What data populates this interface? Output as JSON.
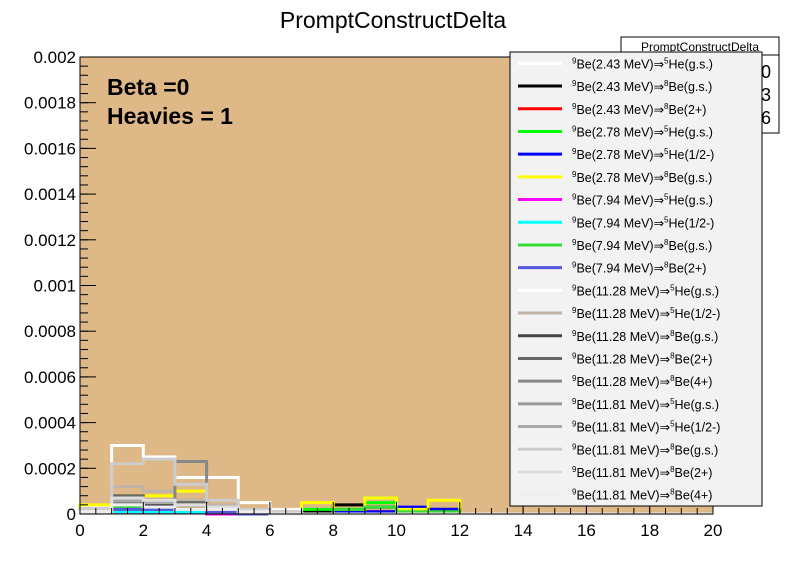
{
  "chart_data": {
    "type": "line",
    "title": "PromptConstructDelta",
    "xlabel": "",
    "ylabel": "",
    "xlim": [
      0,
      20
    ],
    "ylim": [
      0,
      0.002
    ],
    "bin_width": 1,
    "frame_fill": "#deb887",
    "x_ticks": [
      "0",
      "2",
      "4",
      "6",
      "8",
      "10",
      "12",
      "14",
      "16",
      "18",
      "20"
    ],
    "y_ticks": [
      "0",
      "0.0002",
      "0.0004",
      "0.0006",
      "0.0008",
      "0.001",
      "0.0012",
      "0.0014",
      "0.0016",
      "0.0018",
      "0.002"
    ],
    "annotations": [
      "Beta =0",
      "Heavies = 1"
    ],
    "stats_box": {
      "title": "PromptConstructDelta",
      "values": [
        "0",
        "3",
        "6"
      ]
    },
    "series": [
      {
        "name": "Be(2.43 MeV)⇒ He(g.s.)",
        "pre": "9",
        "post": "5",
        "color": "#ffffff",
        "values": [
          3e-05,
          3e-05,
          3e-05,
          2e-05,
          1e-05,
          1e-05,
          1e-05,
          0,
          0,
          0,
          0,
          0,
          0,
          0,
          0,
          0,
          0,
          0,
          0,
          0
        ]
      },
      {
        "name": "Be(2.43 MeV)⇒ Be(g.s.)",
        "pre": "9",
        "post": "8",
        "color": "#000000",
        "values": [
          2e-05,
          4e-05,
          3e-05,
          2e-05,
          1e-05,
          1e-05,
          5e-06,
          1e-05,
          4e-05,
          3e-05,
          2e-05,
          2e-05,
          0,
          0,
          0,
          0,
          0,
          0,
          0,
          0
        ]
      },
      {
        "name": "Be(2.43 MeV)⇒ Be(2+)",
        "pre": "9",
        "post": "8",
        "color": "#ff0000",
        "values": [
          1e-05,
          1e-05,
          1e-05,
          1e-05,
          0,
          0,
          0,
          0,
          1e-05,
          1e-05,
          0,
          0,
          0,
          0,
          0,
          0,
          0,
          0,
          0,
          0
        ]
      },
      {
        "name": "Be(2.78 MeV)⇒ He(g.s.)",
        "pre": "9",
        "post": "5",
        "color": "#00ff00",
        "values": [
          1e-05,
          2e-05,
          2e-05,
          1e-05,
          1e-05,
          0,
          0,
          2e-05,
          2e-05,
          5e-05,
          2e-05,
          1e-05,
          0,
          0,
          0,
          0,
          0,
          0,
          0,
          0
        ]
      },
      {
        "name": "Be(2.78 MeV)⇒ He(1/2-)",
        "pre": "9",
        "post": "5",
        "color": "#0000ff",
        "values": [
          2e-05,
          5e-05,
          4e-05,
          4e-05,
          2e-05,
          1e-05,
          0,
          0,
          1e-05,
          1e-05,
          3e-05,
          2e-05,
          0,
          0,
          0,
          0,
          0,
          0,
          0,
          0
        ]
      },
      {
        "name": "Be(2.78 MeV)⇒ Be(g.s.)",
        "pre": "9",
        "post": "8",
        "color": "#ffff00",
        "values": [
          4e-05,
          8e-05,
          8e-05,
          0.0001,
          2e-05,
          1e-05,
          0,
          5e-05,
          2e-05,
          7e-05,
          2e-05,
          6e-05,
          0,
          0,
          0,
          0,
          0,
          0,
          0,
          0
        ]
      },
      {
        "name": "Be(7.94 MeV)⇒ He(g.s.)",
        "pre": "9",
        "post": "5",
        "color": "#ff00ff",
        "values": [
          1e-05,
          1e-05,
          1e-05,
          1e-05,
          0,
          0,
          0,
          0,
          0,
          0,
          0,
          0,
          0,
          0,
          0,
          0,
          0,
          0,
          0,
          0
        ]
      },
      {
        "name": "Be(7.94 MeV)⇒ He(1/2-)",
        "pre": "9",
        "post": "5",
        "color": "#00ffff",
        "values": [
          1e-05,
          1e-05,
          1e-05,
          1e-05,
          1e-05,
          0,
          0,
          0,
          0,
          0,
          0,
          0,
          0,
          0,
          0,
          0,
          0,
          0,
          0,
          0
        ]
      },
      {
        "name": "Be(7.94 MeV)⇒ Be(g.s.)",
        "pre": "9",
        "post": "8",
        "color": "#33dd33",
        "values": [
          1e-05,
          3e-05,
          2e-05,
          2e-05,
          1e-05,
          0,
          0,
          0,
          2e-05,
          3e-05,
          1e-05,
          1e-05,
          0,
          0,
          0,
          0,
          0,
          0,
          0,
          0
        ]
      },
      {
        "name": "Be(7.94 MeV)⇒ Be(2+)",
        "pre": "9",
        "post": "8",
        "color": "#5555dd",
        "values": [
          1e-05,
          2e-05,
          2e-05,
          2e-05,
          1e-05,
          0,
          0,
          0,
          0,
          0,
          0,
          0,
          0,
          0,
          0,
          0,
          0,
          0,
          0,
          0
        ]
      },
      {
        "name": "Be(11.28 MeV)⇒ He(g.s.)",
        "pre": "9",
        "post": "5",
        "color": "#ffffff",
        "values": [
          1e-05,
          0.0003,
          0.00025,
          0.00016,
          0.00016,
          5e-05,
          2e-05,
          0,
          0,
          0,
          0,
          0,
          0,
          0,
          0,
          0,
          0,
          0,
          0,
          0
        ]
      },
      {
        "name": "Be(11.28 MeV)⇒ He(1/2-)",
        "pre": "9",
        "post": "5",
        "color": "#c0b4a8",
        "values": [
          1e-05,
          0.00012,
          0.0001,
          6e-05,
          4e-05,
          2e-05,
          1e-05,
          0,
          0,
          0,
          0,
          0,
          0,
          0,
          0,
          0,
          0,
          0,
          0,
          0
        ]
      },
      {
        "name": "Be(11.28 MeV)⇒ Be(g.s.)",
        "pre": "9",
        "post": "8",
        "color": "#444444",
        "values": [
          1e-05,
          5e-05,
          4e-05,
          4e-05,
          2e-05,
          1e-05,
          0,
          0,
          0,
          0,
          0,
          0,
          0,
          0,
          0,
          0,
          0,
          0,
          0,
          0
        ]
      },
      {
        "name": "Be(11.28 MeV)⇒ Be(2+)",
        "pre": "9",
        "post": "8",
        "color": "#666666",
        "values": [
          2e-05,
          8e-05,
          6e-05,
          5e-05,
          3e-05,
          1e-05,
          0,
          0,
          0,
          0,
          0,
          0,
          0,
          0,
          0,
          0,
          0,
          0,
          0,
          0
        ]
      },
      {
        "name": "Be(11.28 MeV)⇒ Be(4+)",
        "pre": "9",
        "post": "8",
        "color": "#888888",
        "values": [
          1e-05,
          5e-05,
          5e-05,
          0.00023,
          3e-05,
          1e-05,
          0,
          0,
          0,
          0,
          0,
          0,
          0,
          0,
          0,
          0,
          0,
          0,
          0,
          0
        ]
      },
      {
        "name": "Be(11.81 MeV)⇒ He(g.s.)",
        "pre": "9",
        "post": "5",
        "color": "#999999",
        "values": [
          1e-05,
          4e-05,
          3e-05,
          2e-05,
          2e-05,
          1e-05,
          0,
          0,
          0,
          0,
          0,
          0,
          0,
          0,
          0,
          0,
          0,
          0,
          0,
          0
        ]
      },
      {
        "name": "Be(11.81 MeV)⇒ He(1/2-)",
        "pre": "9",
        "post": "5",
        "color": "#aaaaaa",
        "values": [
          1e-05,
          6e-05,
          5e-05,
          4e-05,
          3e-05,
          1e-05,
          0,
          0,
          0,
          0,
          0,
          0,
          0,
          0,
          0,
          0,
          0,
          0,
          0,
          0
        ]
      },
      {
        "name": "Be(11.81 MeV)⇒ Be(g.s.)",
        "pre": "9",
        "post": "8",
        "color": "#cccccc",
        "values": [
          2e-05,
          0.00022,
          0.00024,
          0.00013,
          6e-05,
          2e-05,
          1e-05,
          0,
          0,
          0,
          0,
          0,
          0,
          0,
          0,
          0,
          0,
          0,
          0,
          0
        ]
      },
      {
        "name": "Be(11.81 MeV)⇒ Be(2+)",
        "pre": "9",
        "post": "8",
        "color": "#dddddd",
        "values": [
          1e-05,
          7e-05,
          6e-05,
          4e-05,
          3e-05,
          1e-05,
          0,
          0,
          0,
          0,
          0,
          0,
          0,
          0,
          0,
          0,
          0,
          0,
          0,
          0
        ]
      },
      {
        "name": "Be(11.81 MeV)⇒ Be(4+)",
        "pre": "9",
        "post": "8",
        "color": "#eeeeee",
        "values": [
          1e-05,
          4e-05,
          3e-05,
          2e-05,
          2e-05,
          1e-05,
          0,
          0,
          0,
          0,
          0,
          0,
          0,
          0,
          0,
          0,
          0,
          0,
          0,
          0
        ]
      }
    ]
  }
}
